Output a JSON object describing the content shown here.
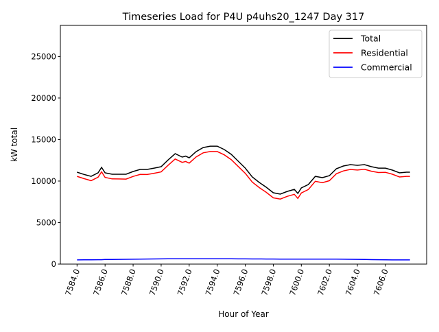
{
  "chart_data": {
    "type": "line",
    "title": "Timeseries Load for P4U p4uhs20_1247  Day 317",
    "xlabel": "Hour of Year",
    "ylabel": "kW total",
    "xlim": [
      7582.81,
      7608.94
    ],
    "ylim": [
      0,
      28750
    ],
    "xticks": [
      7584,
      7586,
      7588,
      7590,
      7592,
      7594,
      7596,
      7598,
      7600,
      7602,
      7604,
      7606
    ],
    "xtick_labels": [
      "7584.0",
      "7586.0",
      "7588.0",
      "7590.0",
      "7592.0",
      "7594.0",
      "7596.0",
      "7598.0",
      "7600.0",
      "7602.0",
      "7604.0",
      "7606.0"
    ],
    "yticks": [
      0,
      5000,
      10000,
      15000,
      20000,
      25000
    ],
    "ytick_labels": [
      "0",
      "5000",
      "10000",
      "15000",
      "20000",
      "25000"
    ],
    "grid": false,
    "legend_position": "top-right",
    "x": [
      7584.0,
      7584.5,
      7585.0,
      7585.5,
      7585.75,
      7586.0,
      7586.5,
      7587.0,
      7587.5,
      7588.0,
      7588.5,
      7589.0,
      7589.5,
      7590.0,
      7590.5,
      7591.0,
      7591.5,
      7591.75,
      7592.0,
      7592.5,
      7593.0,
      7593.5,
      7594.0,
      7594.5,
      7595.0,
      7595.5,
      7596.0,
      7596.5,
      7597.0,
      7597.5,
      7598.0,
      7598.5,
      7599.0,
      7599.5,
      7599.75,
      7600.0,
      7600.5,
      7601.0,
      7601.5,
      7602.0,
      7602.5,
      7603.0,
      7603.5,
      7604.0,
      7604.5,
      7605.0,
      7605.5,
      7606.0,
      7606.5,
      7607.0,
      7607.5,
      7607.75
    ],
    "series": [
      {
        "name": "Total",
        "color": "#000000",
        "values": [
          11070,
          10800,
          10570,
          11000,
          11650,
          10990,
          10820,
          10820,
          10820,
          11150,
          11400,
          11400,
          11560,
          11730,
          12550,
          13300,
          12890,
          13000,
          12800,
          13550,
          14040,
          14200,
          14200,
          13800,
          13220,
          12390,
          11560,
          10490,
          9830,
          9250,
          8590,
          8430,
          8760,
          9000,
          8510,
          9170,
          9580,
          10570,
          10410,
          10650,
          11480,
          11810,
          11980,
          11900,
          11980,
          11730,
          11560,
          11560,
          11320,
          10990,
          11070,
          11070
        ]
      },
      {
        "name": "Residential",
        "color": "#ff0000",
        "values": [
          10570,
          10290,
          10050,
          10470,
          11110,
          10440,
          10260,
          10250,
          10240,
          10560,
          10800,
          10790,
          10940,
          11100,
          11910,
          12660,
          12250,
          12360,
          12160,
          12910,
          13400,
          13560,
          13560,
          13160,
          12580,
          11760,
          10930,
          9870,
          9210,
          8640,
          7980,
          7830,
          8160,
          8400,
          7910,
          8570,
          8980,
          9970,
          9810,
          10050,
          10880,
          11220,
          11400,
          11330,
          11420,
          11190,
          11030,
          11050,
          10820,
          10490,
          10570,
          10570
        ]
      },
      {
        "name": "Commercial",
        "color": "#0000ff",
        "values": [
          500,
          510,
          520,
          530,
          530,
          550,
          560,
          570,
          580,
          590,
          600,
          610,
          620,
          630,
          640,
          640,
          640,
          640,
          640,
          640,
          640,
          640,
          640,
          640,
          640,
          630,
          630,
          620,
          620,
          610,
          610,
          600,
          600,
          600,
          600,
          600,
          600,
          600,
          600,
          600,
          600,
          590,
          580,
          570,
          560,
          540,
          530,
          510,
          500,
          500,
          500,
          500
        ]
      }
    ]
  }
}
